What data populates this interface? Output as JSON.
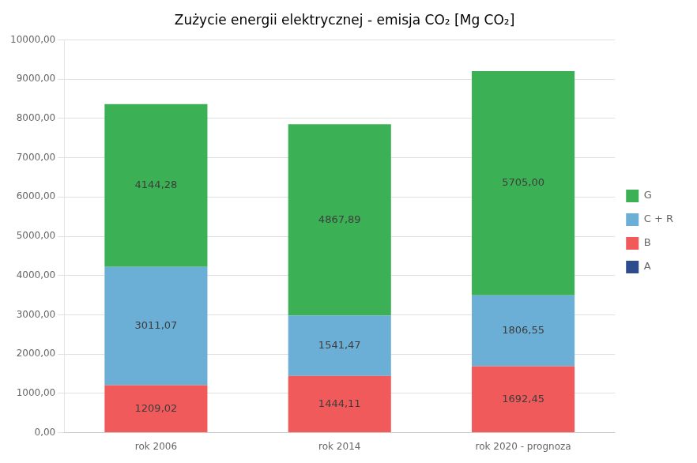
{
  "chart_data": {
    "type": "bar",
    "title": "Zużycie energii elektrycznej - emisja CO₂ [Mg CO₂]",
    "categories": [
      "rok 2006",
      "rok 2014",
      "rok 2020 - prognoza"
    ],
    "stacked": true,
    "series": [
      {
        "name": "A",
        "color": "#2e4b8c",
        "values": [
          0.0,
          0.0,
          0.0
        ],
        "value_labels": [
          null,
          null,
          null
        ]
      },
      {
        "name": "B",
        "color": "#f05a5a",
        "values": [
          1209.02,
          1444.11,
          1692.45
        ],
        "value_labels": [
          "1209,02",
          "1444,11",
          "1692,45"
        ]
      },
      {
        "name": "C + R",
        "color": "#6baed6",
        "values": [
          3011.07,
          1541.47,
          1806.55
        ],
        "value_labels": [
          "3011,07",
          "1541,47",
          "1806,55"
        ]
      },
      {
        "name": "G",
        "color": "#3cb054",
        "values": [
          4144.28,
          4867.89,
          5705.0
        ],
        "value_labels": [
          "4144,28",
          "4867,89",
          "5705,00"
        ]
      }
    ],
    "ylim": [
      0,
      10000
    ],
    "yticks": [
      {
        "value": 0,
        "label": "0,00"
      },
      {
        "value": 1000,
        "label": "1000,00"
      },
      {
        "value": 2000,
        "label": "2000,00"
      },
      {
        "value": 3000,
        "label": "3000,00"
      },
      {
        "value": 4000,
        "label": "4000,00"
      },
      {
        "value": 5000,
        "label": "5000,00"
      },
      {
        "value": 6000,
        "label": "6000,00"
      },
      {
        "value": 7000,
        "label": "7000,00"
      },
      {
        "value": 8000,
        "label": "8000,00"
      },
      {
        "value": 9000,
        "label": "9000,00"
      },
      {
        "value": 10000,
        "label": "10000,00"
      }
    ],
    "grid": true,
    "legend": "right",
    "data_labels": true
  }
}
